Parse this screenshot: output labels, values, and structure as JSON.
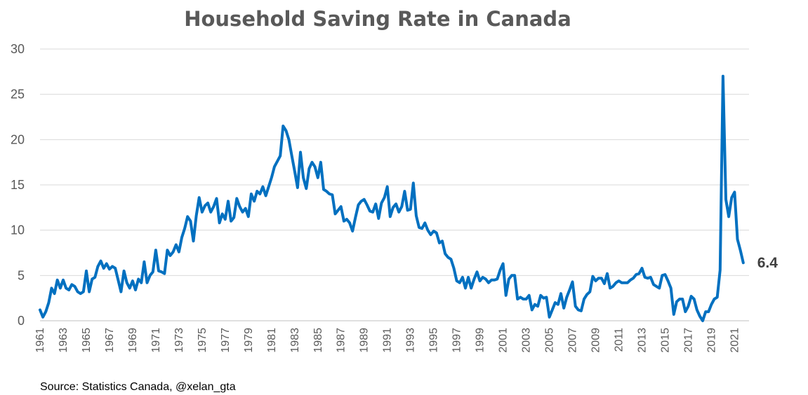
{
  "chart_data": {
    "type": "line",
    "title": "Household Saving Rate in Canada",
    "xlabel": "",
    "ylabel": "",
    "ylim": [
      0,
      30
    ],
    "yticks": [
      0,
      5,
      10,
      15,
      20,
      25,
      30
    ],
    "xlim": [
      1961,
      2022.25
    ],
    "xticks": [
      "1961",
      "1963",
      "1965",
      "1967",
      "1969",
      "1971",
      "1973",
      "1975",
      "1977",
      "1979",
      "1981",
      "1983",
      "1985",
      "1987",
      "1989",
      "1991",
      "1993",
      "1995",
      "1997",
      "1999",
      "2001",
      "2003",
      "2005",
      "2007",
      "2009",
      "2011",
      "2013",
      "2015",
      "2017",
      "2019",
      "2021"
    ],
    "grid": "horizontal",
    "legend": "none",
    "series": [
      {
        "color": "#0070C0",
        "end_label": "6.4",
        "points": [
          [
            1961.0,
            1.2
          ],
          [
            1961.25,
            0.4
          ],
          [
            1961.5,
            1.0
          ],
          [
            1961.75,
            2.0
          ],
          [
            1962.0,
            3.6
          ],
          [
            1962.25,
            3.0
          ],
          [
            1962.5,
            4.5
          ],
          [
            1962.75,
            3.6
          ],
          [
            1963.0,
            4.5
          ],
          [
            1963.25,
            3.6
          ],
          [
            1963.5,
            3.4
          ],
          [
            1963.75,
            4.0
          ],
          [
            1964.0,
            3.8
          ],
          [
            1964.25,
            3.2
          ],
          [
            1964.5,
            3.0
          ],
          [
            1964.75,
            3.2
          ],
          [
            1965.0,
            5.5
          ],
          [
            1965.25,
            3.2
          ],
          [
            1965.5,
            4.6
          ],
          [
            1965.75,
            4.8
          ],
          [
            1966.0,
            6.0
          ],
          [
            1966.25,
            6.6
          ],
          [
            1966.5,
            5.8
          ],
          [
            1966.75,
            6.3
          ],
          [
            1967.0,
            5.7
          ],
          [
            1967.25,
            6.0
          ],
          [
            1967.5,
            5.8
          ],
          [
            1967.75,
            4.5
          ],
          [
            1968.0,
            3.2
          ],
          [
            1968.25,
            5.5
          ],
          [
            1968.5,
            4.2
          ],
          [
            1968.75,
            3.6
          ],
          [
            1969.0,
            4.4
          ],
          [
            1969.25,
            3.4
          ],
          [
            1969.5,
            4.6
          ],
          [
            1969.75,
            4.2
          ],
          [
            1970.0,
            6.5
          ],
          [
            1970.25,
            4.2
          ],
          [
            1970.5,
            5.0
          ],
          [
            1970.75,
            5.4
          ],
          [
            1971.0,
            7.8
          ],
          [
            1971.25,
            5.5
          ],
          [
            1971.5,
            5.4
          ],
          [
            1971.75,
            5.2
          ],
          [
            1972.0,
            7.8
          ],
          [
            1972.25,
            7.2
          ],
          [
            1972.5,
            7.6
          ],
          [
            1972.75,
            8.4
          ],
          [
            1973.0,
            7.6
          ],
          [
            1973.25,
            9.2
          ],
          [
            1973.5,
            10.2
          ],
          [
            1973.75,
            11.5
          ],
          [
            1974.0,
            11.0
          ],
          [
            1974.25,
            8.8
          ],
          [
            1974.5,
            11.6
          ],
          [
            1974.75,
            13.6
          ],
          [
            1975.0,
            12.0
          ],
          [
            1975.25,
            12.7
          ],
          [
            1975.5,
            13.0
          ],
          [
            1975.75,
            12.0
          ],
          [
            1976.0,
            12.6
          ],
          [
            1976.25,
            13.5
          ],
          [
            1976.5,
            10.8
          ],
          [
            1976.75,
            11.8
          ],
          [
            1977.0,
            11.2
          ],
          [
            1977.25,
            13.2
          ],
          [
            1977.5,
            11.0
          ],
          [
            1977.75,
            11.4
          ],
          [
            1978.0,
            13.5
          ],
          [
            1978.25,
            12.6
          ],
          [
            1978.5,
            12.0
          ],
          [
            1978.75,
            12.4
          ],
          [
            1979.0,
            11.5
          ],
          [
            1979.25,
            14.0
          ],
          [
            1979.5,
            13.2
          ],
          [
            1979.75,
            14.3
          ],
          [
            1980.0,
            14.0
          ],
          [
            1980.25,
            14.8
          ],
          [
            1980.5,
            13.8
          ],
          [
            1980.75,
            14.8
          ],
          [
            1981.0,
            15.8
          ],
          [
            1981.25,
            17.0
          ],
          [
            1981.5,
            17.6
          ],
          [
            1981.75,
            18.2
          ],
          [
            1982.0,
            21.5
          ],
          [
            1982.25,
            21.0
          ],
          [
            1982.5,
            20.0
          ],
          [
            1982.75,
            18.2
          ],
          [
            1983.0,
            16.5
          ],
          [
            1983.25,
            14.7
          ],
          [
            1983.5,
            18.6
          ],
          [
            1983.75,
            15.8
          ],
          [
            1984.0,
            14.6
          ],
          [
            1984.25,
            16.8
          ],
          [
            1984.5,
            17.5
          ],
          [
            1984.75,
            17.0
          ],
          [
            1985.0,
            15.8
          ],
          [
            1985.25,
            17.5
          ],
          [
            1985.5,
            14.5
          ],
          [
            1985.75,
            14.3
          ],
          [
            1986.0,
            14.0
          ],
          [
            1986.25,
            13.9
          ],
          [
            1986.5,
            11.8
          ],
          [
            1986.75,
            12.2
          ],
          [
            1987.0,
            12.6
          ],
          [
            1987.25,
            11.0
          ],
          [
            1987.5,
            11.2
          ],
          [
            1987.75,
            10.8
          ],
          [
            1988.0,
            9.9
          ],
          [
            1988.25,
            11.4
          ],
          [
            1988.5,
            12.8
          ],
          [
            1988.75,
            13.2
          ],
          [
            1989.0,
            13.4
          ],
          [
            1989.25,
            12.8
          ],
          [
            1989.5,
            12.1
          ],
          [
            1989.75,
            12.0
          ],
          [
            1990.0,
            12.9
          ],
          [
            1990.25,
            11.3
          ],
          [
            1990.5,
            13.0
          ],
          [
            1990.75,
            13.6
          ],
          [
            1991.0,
            14.8
          ],
          [
            1991.25,
            11.5
          ],
          [
            1991.5,
            12.5
          ],
          [
            1991.75,
            12.9
          ],
          [
            1992.0,
            12.0
          ],
          [
            1992.25,
            12.6
          ],
          [
            1992.5,
            14.3
          ],
          [
            1992.75,
            12.2
          ],
          [
            1993.0,
            12.3
          ],
          [
            1993.25,
            15.2
          ],
          [
            1993.5,
            11.6
          ],
          [
            1993.75,
            10.3
          ],
          [
            1994.0,
            10.2
          ],
          [
            1994.25,
            10.8
          ],
          [
            1994.5,
            10.0
          ],
          [
            1994.75,
            9.5
          ],
          [
            1995.0,
            9.9
          ],
          [
            1995.25,
            9.7
          ],
          [
            1995.5,
            8.6
          ],
          [
            1995.75,
            8.8
          ],
          [
            1996.0,
            7.4
          ],
          [
            1996.25,
            7.0
          ],
          [
            1996.5,
            6.8
          ],
          [
            1996.75,
            5.8
          ],
          [
            1997.0,
            4.4
          ],
          [
            1997.25,
            4.2
          ],
          [
            1997.5,
            4.8
          ],
          [
            1997.75,
            3.6
          ],
          [
            1998.0,
            4.8
          ],
          [
            1998.25,
            3.6
          ],
          [
            1998.5,
            4.6
          ],
          [
            1998.75,
            5.4
          ],
          [
            1999.0,
            4.4
          ],
          [
            1999.25,
            4.8
          ],
          [
            1999.5,
            4.6
          ],
          [
            1999.75,
            4.2
          ],
          [
            2000.0,
            4.5
          ],
          [
            2000.25,
            4.5
          ],
          [
            2000.5,
            4.6
          ],
          [
            2000.75,
            5.6
          ],
          [
            2001.0,
            6.3
          ],
          [
            2001.25,
            2.8
          ],
          [
            2001.5,
            4.6
          ],
          [
            2001.75,
            5.0
          ],
          [
            2002.0,
            5.0
          ],
          [
            2002.25,
            2.4
          ],
          [
            2002.5,
            2.6
          ],
          [
            2002.75,
            2.4
          ],
          [
            2003.0,
            2.4
          ],
          [
            2003.25,
            2.8
          ],
          [
            2003.5,
            1.2
          ],
          [
            2003.75,
            1.8
          ],
          [
            2004.0,
            1.6
          ],
          [
            2004.25,
            2.8
          ],
          [
            2004.5,
            2.5
          ],
          [
            2004.75,
            2.6
          ],
          [
            2005.0,
            0.4
          ],
          [
            2005.25,
            1.2
          ],
          [
            2005.5,
            2.0
          ],
          [
            2005.75,
            1.8
          ],
          [
            2006.0,
            3.0
          ],
          [
            2006.25,
            1.4
          ],
          [
            2006.5,
            2.6
          ],
          [
            2006.75,
            3.4
          ],
          [
            2007.0,
            4.3
          ],
          [
            2007.25,
            1.6
          ],
          [
            2007.5,
            1.2
          ],
          [
            2007.75,
            1.1
          ],
          [
            2008.0,
            2.4
          ],
          [
            2008.25,
            2.9
          ],
          [
            2008.5,
            3.2
          ],
          [
            2008.75,
            4.9
          ],
          [
            2009.0,
            4.4
          ],
          [
            2009.25,
            4.7
          ],
          [
            2009.5,
            4.7
          ],
          [
            2009.75,
            4.1
          ],
          [
            2010.0,
            5.2
          ],
          [
            2010.25,
            3.6
          ],
          [
            2010.5,
            3.8
          ],
          [
            2010.75,
            4.2
          ],
          [
            2011.0,
            4.4
          ],
          [
            2011.25,
            4.2
          ],
          [
            2011.5,
            4.2
          ],
          [
            2011.75,
            4.2
          ],
          [
            2012.0,
            4.5
          ],
          [
            2012.25,
            4.7
          ],
          [
            2012.5,
            5.1
          ],
          [
            2012.75,
            5.2
          ],
          [
            2013.0,
            5.8
          ],
          [
            2013.25,
            4.8
          ],
          [
            2013.5,
            4.7
          ],
          [
            2013.75,
            4.8
          ],
          [
            2014.0,
            4.0
          ],
          [
            2014.25,
            3.8
          ],
          [
            2014.5,
            3.6
          ],
          [
            2014.75,
            5.0
          ],
          [
            2015.0,
            5.1
          ],
          [
            2015.25,
            4.4
          ],
          [
            2015.5,
            3.6
          ],
          [
            2015.75,
            0.7
          ],
          [
            2016.0,
            2.1
          ],
          [
            2016.25,
            2.4
          ],
          [
            2016.5,
            2.4
          ],
          [
            2016.75,
            1.0
          ],
          [
            2017.0,
            1.6
          ],
          [
            2017.25,
            2.7
          ],
          [
            2017.5,
            2.4
          ],
          [
            2017.75,
            1.2
          ],
          [
            2018.0,
            0.5
          ],
          [
            2018.25,
            0.0
          ],
          [
            2018.5,
            1.0
          ],
          [
            2018.75,
            1.0
          ],
          [
            2019.0,
            1.8
          ],
          [
            2019.25,
            2.4
          ],
          [
            2019.5,
            2.6
          ],
          [
            2019.75,
            5.6
          ],
          [
            2020.0,
            27.0
          ],
          [
            2020.25,
            13.4
          ],
          [
            2020.5,
            11.5
          ],
          [
            2020.75,
            13.6
          ],
          [
            2021.0,
            14.2
          ],
          [
            2021.25,
            9.0
          ],
          [
            2021.5,
            7.8
          ],
          [
            2021.75,
            6.4
          ]
        ]
      }
    ]
  },
  "source_note": "Source: Statistics Canada, @xelan_gta"
}
